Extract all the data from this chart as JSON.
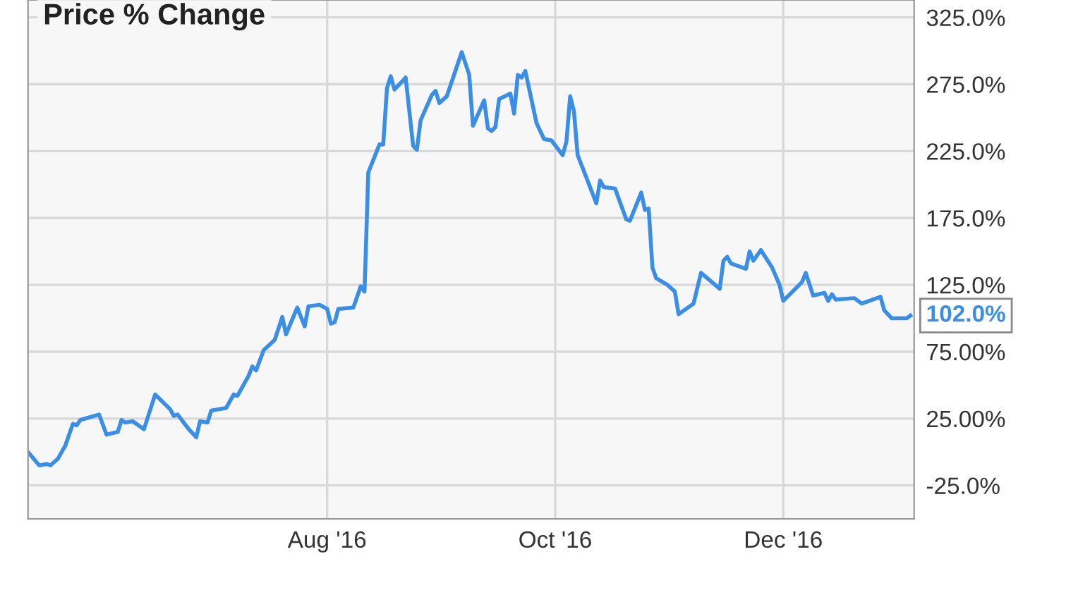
{
  "chart_data": {
    "type": "line",
    "title": "Price % Change",
    "x": [
      "2016-05-13",
      "2016-05-16",
      "2016-05-18",
      "2016-05-19",
      "2016-05-21",
      "2016-05-23",
      "2016-05-25",
      "2016-05-26",
      "2016-05-27",
      "2016-06-01",
      "2016-06-03",
      "2016-06-06",
      "2016-06-07",
      "2016-06-08",
      "2016-06-10",
      "2016-06-13",
      "2016-06-16",
      "2016-06-20",
      "2016-06-21",
      "2016-06-22",
      "2016-06-25",
      "2016-06-27",
      "2016-06-28",
      "2016-06-30",
      "2016-07-01",
      "2016-07-05",
      "2016-07-07",
      "2016-07-08",
      "2016-07-11",
      "2016-07-12",
      "2016-07-13",
      "2016-07-15",
      "2016-07-18",
      "2016-07-20",
      "2016-07-21",
      "2016-07-24",
      "2016-07-26",
      "2016-07-27",
      "2016-07-30",
      "2016-08-01",
      "2016-08-02",
      "2016-08-03",
      "2016-08-04",
      "2016-08-08",
      "2016-08-10",
      "2016-08-11",
      "2016-08-12",
      "2016-08-15",
      "2016-08-16",
      "2016-08-17",
      "2016-08-18",
      "2016-08-19",
      "2016-08-22",
      "2016-08-24",
      "2016-08-25",
      "2016-08-26",
      "2016-08-29",
      "2016-08-30",
      "2016-08-31",
      "2016-09-02",
      "2016-09-06",
      "2016-09-08",
      "2016-09-09",
      "2016-09-12",
      "2016-09-13",
      "2016-09-14",
      "2016-09-15",
      "2016-09-16",
      "2016-09-19",
      "2016-09-20",
      "2016-09-21",
      "2016-09-22",
      "2016-09-23",
      "2016-09-26",
      "2016-09-28",
      "2016-09-30",
      "2016-10-03",
      "2016-10-04",
      "2016-10-05",
      "2016-10-06",
      "2016-10-07",
      "2016-10-12",
      "2016-10-13",
      "2016-10-14",
      "2016-10-17",
      "2016-10-20",
      "2016-10-21",
      "2016-10-24",
      "2016-10-25",
      "2016-10-26",
      "2016-10-27",
      "2016-10-28",
      "2016-10-31",
      "2016-11-02",
      "2016-11-03",
      "2016-11-07",
      "2016-11-09",
      "2016-11-14",
      "2016-11-15",
      "2016-11-16",
      "2016-11-17",
      "2016-11-21",
      "2016-11-22",
      "2016-11-23",
      "2016-11-25",
      "2016-11-28",
      "2016-11-30",
      "2016-12-01",
      "2016-12-06",
      "2016-12-07",
      "2016-12-09",
      "2016-12-12",
      "2016-12-13",
      "2016-12-14",
      "2016-12-15",
      "2016-12-20",
      "2016-12-22",
      "2016-12-27",
      "2016-12-28",
      "2016-12-30",
      "2017-01-03",
      "2017-01-04"
    ],
    "series": [
      {
        "color": "#3a8ee6",
        "values": [
          0,
          -10,
          -9,
          -10,
          -5,
          5,
          21,
          20,
          24,
          28,
          13,
          15,
          24,
          22,
          23,
          17,
          43,
          32,
          27,
          28,
          17,
          11,
          23,
          22,
          31,
          33,
          43,
          42,
          57,
          64,
          61,
          76,
          84,
          101,
          88,
          108,
          94,
          109,
          110,
          107,
          96,
          97,
          107,
          108,
          124,
          120,
          209,
          230,
          230,
          272,
          281,
          271,
          280,
          229,
          226,
          248,
          267,
          270,
          261,
          266,
          299,
          282,
          244,
          263,
          242,
          240,
          243,
          264,
          268,
          253,
          282,
          280,
          285,
          246,
          234,
          233,
          222,
          232,
          266,
          255,
          222,
          186,
          203,
          198,
          197,
          174,
          173,
          194,
          181,
          182,
          138,
          130,
          125,
          120,
          103,
          111,
          134,
          122,
          143,
          146,
          141,
          137,
          150,
          143,
          151,
          138,
          125,
          113,
          127,
          134,
          117,
          119,
          113,
          118,
          114,
          115,
          111,
          116,
          106,
          100,
          100,
          102
        ]
      }
    ],
    "xlim": [
      "2016-05-13",
      "2017-01-05"
    ],
    "xticks": [
      {
        "value": "2016-08-01",
        "label": "Aug '16"
      },
      {
        "value": "2016-10-01",
        "label": "Oct '16"
      },
      {
        "value": "2016-12-01",
        "label": "Dec '16"
      }
    ],
    "ylim": [
      -50,
      338
    ],
    "yticks": [
      {
        "value": -25,
        "label": "-25.0%"
      },
      {
        "value": 25,
        "label": "25.00%"
      },
      {
        "value": 75,
        "label": "75.00%"
      },
      {
        "value": 125,
        "label": "125.0%"
      },
      {
        "value": 175,
        "label": "175.0%"
      },
      {
        "value": 225,
        "label": "225.0%"
      },
      {
        "value": 275,
        "label": "275.0%"
      },
      {
        "value": 325,
        "label": "325.0%"
      }
    ],
    "grid": true,
    "annotations": [
      {
        "text": "102.0%",
        "x": "2017-01-04",
        "y": 102
      }
    ]
  }
}
